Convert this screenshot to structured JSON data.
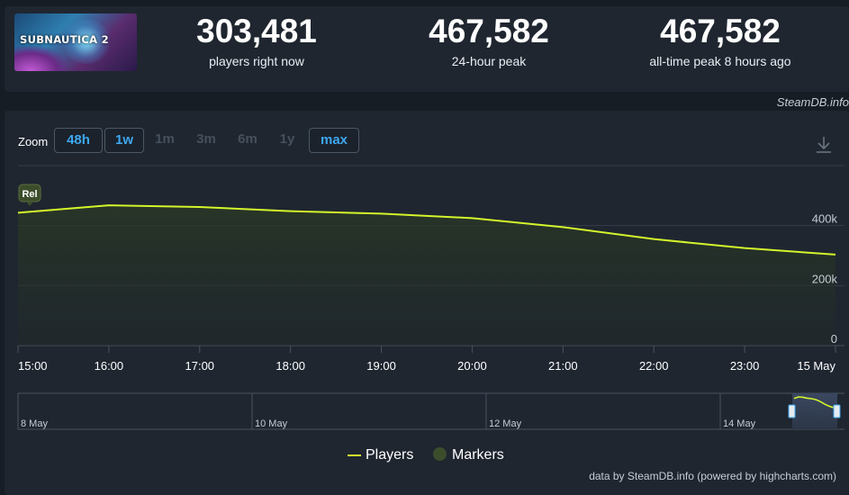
{
  "game": {
    "cover_logo": "SUBNAUTICA 2"
  },
  "stats": [
    {
      "value": "303,481",
      "label": "players right now"
    },
    {
      "value": "467,582",
      "label": "24-hour peak"
    },
    {
      "value": "467,582",
      "label": "all-time peak 8 hours ago"
    }
  ],
  "credit_top": "SteamDB.info",
  "zoom": {
    "label": "Zoom",
    "buttons": [
      {
        "label": "48h",
        "active": true
      },
      {
        "label": "1w",
        "active": true
      },
      {
        "label": "1m",
        "active": false
      },
      {
        "label": "3m",
        "active": false
      },
      {
        "label": "6m",
        "active": false
      },
      {
        "label": "1y",
        "active": false
      },
      {
        "label": "max",
        "active": true
      }
    ]
  },
  "icons": {
    "download": "download-icon"
  },
  "colors": {
    "line": "#d4f52b",
    "accent": "#3ea7f0",
    "marker": "#3c4d2c",
    "background": "#1f2630"
  },
  "chart_data": {
    "type": "line",
    "series": [
      {
        "name": "Players",
        "x": [
          "15:00",
          "16:00",
          "17:00",
          "18:00",
          "19:00",
          "20:00",
          "21:00",
          "22:00",
          "23:00",
          "15 May"
        ],
        "values": [
          443000,
          467582,
          462000,
          448000,
          440000,
          425000,
          395000,
          355000,
          325000,
          303481
        ]
      }
    ],
    "xticks": [
      "15:00",
      "16:00",
      "17:00",
      "18:00",
      "19:00",
      "20:00",
      "21:00",
      "22:00",
      "23:00",
      "15 May"
    ],
    "yticks": [
      {
        "value": 0,
        "label": "0"
      },
      {
        "value": 200000,
        "label": "200k"
      },
      {
        "value": 400000,
        "label": "400k"
      }
    ],
    "ylim": [
      0,
      600000
    ],
    "marker": {
      "label": "Rel",
      "x": "15:00"
    },
    "grid": true,
    "navigator": {
      "labels": [
        "8 May",
        "10 May",
        "12 May",
        "14 May"
      ]
    },
    "legend": [
      {
        "name": "Players",
        "type": "line"
      },
      {
        "name": "Markers",
        "type": "dot"
      }
    ],
    "legend_position": "bottom-center"
  },
  "footer": "data by SteamDB.info (powered by highcharts.com)"
}
